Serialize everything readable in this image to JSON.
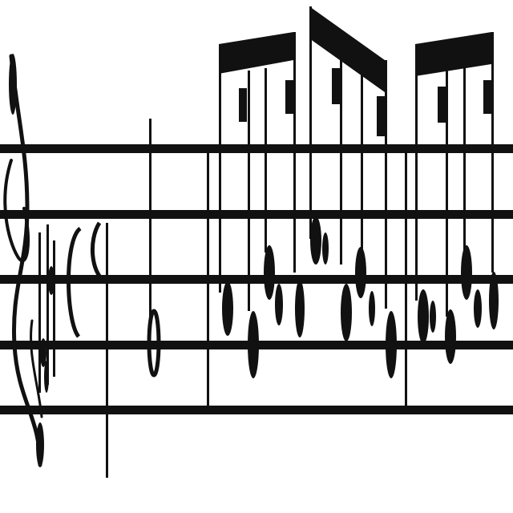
{
  "score": {
    "clef": "treble-clef",
    "key_signature": {
      "accidental": "sharp",
      "count": 3
    },
    "time_signature": "common-time",
    "ink_color": "#111111",
    "background_color": "#ffffff"
  }
}
